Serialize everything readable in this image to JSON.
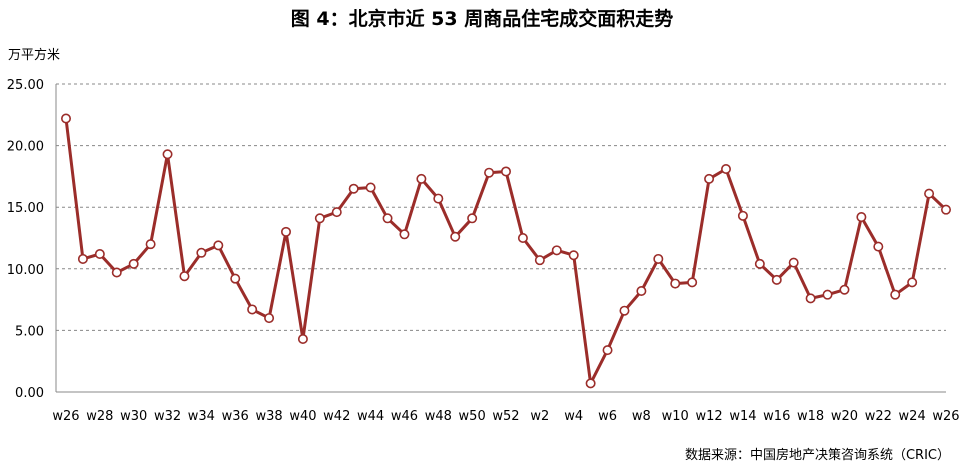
{
  "title": "图 4：北京市近 53 周商品住宅成交面积走势",
  "unit_label": "万平方米",
  "source": "数据来源：中国房地产决策咨询系统（CRIC）",
  "colors": {
    "line": "#9b2d2a",
    "marker_fill": "#ffffff",
    "grid": "#888888"
  },
  "chart_data": {
    "type": "line",
    "title": "图 4：北京市近 53 周商品住宅成交面积走势",
    "xlabel": "",
    "ylabel": "万平方米",
    "ylim": [
      0,
      25
    ],
    "yticks": [
      "0.00",
      "5.00",
      "10.00",
      "15.00",
      "20.00",
      "25.00"
    ],
    "grid": "horizontal dashed",
    "x": [
      "w26",
      "w27",
      "w28",
      "w29",
      "w30",
      "w31",
      "w32",
      "w33",
      "w34",
      "w35",
      "w36",
      "w37",
      "w38",
      "w39",
      "w40",
      "w41",
      "w42",
      "w43",
      "w44",
      "w45",
      "w46",
      "w47",
      "w48",
      "w49",
      "w50",
      "w51",
      "w52",
      "w1",
      "w2",
      "w3",
      "w4",
      "w5",
      "w6",
      "w7",
      "w8",
      "w9",
      "w10",
      "w11",
      "w12",
      "w13",
      "w14",
      "w15",
      "w16",
      "w17",
      "w18",
      "w19",
      "w20",
      "w21",
      "w22",
      "w23",
      "w24",
      "w25",
      "w26"
    ],
    "xtick_labels": [
      "w26",
      "w28",
      "w30",
      "w32",
      "w34",
      "w36",
      "w38",
      "w40",
      "w42",
      "w44",
      "w46",
      "w48",
      "w50",
      "w52",
      "w2",
      "w4",
      "w6",
      "w8",
      "w10",
      "w12",
      "w14",
      "w16",
      "w18",
      "w20",
      "w22",
      "w24",
      "w26"
    ],
    "series": [
      {
        "values": [
          22.2,
          10.8,
          11.2,
          9.7,
          10.4,
          12.0,
          19.3,
          9.4,
          11.3,
          11.9,
          9.2,
          6.7,
          6.0,
          13.0,
          4.3,
          14.1,
          14.6,
          16.5,
          16.6,
          14.1,
          12.8,
          17.3,
          15.7,
          12.6,
          14.1,
          17.8,
          17.9,
          12.5,
          10.7,
          11.5,
          11.1,
          0.7,
          3.4,
          6.6,
          8.2,
          10.8,
          8.8,
          8.9,
          17.3,
          18.1,
          14.3,
          10.4,
          9.1,
          10.5,
          7.6,
          7.9,
          8.3,
          14.2,
          11.8,
          7.9,
          8.9,
          16.1,
          14.8
        ]
      }
    ]
  }
}
